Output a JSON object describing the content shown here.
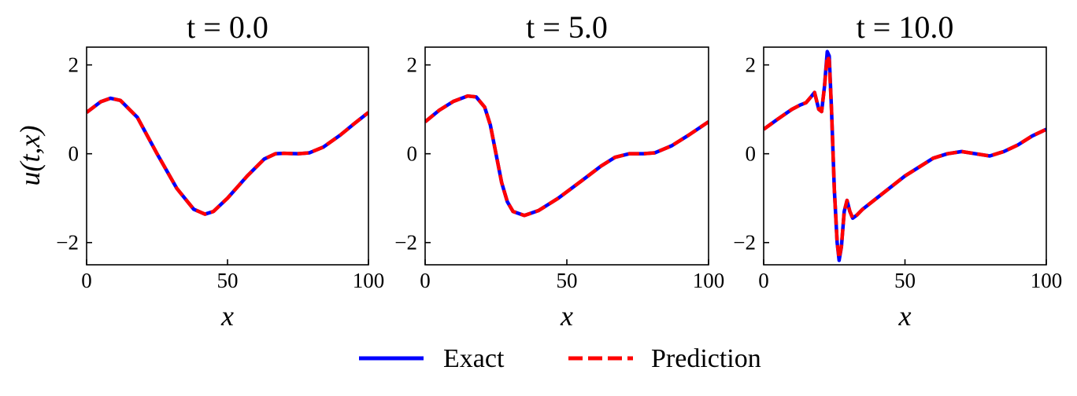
{
  "chart_data": [
    {
      "type": "line",
      "title": "t = 0.0",
      "xlabel": "x",
      "ylabel": "u(t,x)",
      "xlim": [
        0,
        100
      ],
      "ylim": [
        -2.5,
        2.4
      ],
      "xticks": [
        0,
        50,
        100
      ],
      "yticks": [
        -2,
        0,
        2
      ],
      "series": [
        {
          "name": "Exact",
          "color": "#0000ff",
          "style": "solid",
          "x": [
            0,
            5,
            8.5,
            12,
            18,
            25,
            32,
            38,
            42,
            45,
            50,
            57,
            63,
            67,
            70,
            75,
            79,
            84,
            90,
            95,
            100
          ],
          "y": [
            0.93,
            1.17,
            1.25,
            1.2,
            0.82,
            0.0,
            -0.78,
            -1.25,
            -1.36,
            -1.3,
            -1.0,
            -0.5,
            -0.12,
            0.0,
            0.01,
            0.0,
            0.02,
            0.15,
            0.42,
            0.68,
            0.93
          ]
        },
        {
          "name": "Prediction",
          "color": "#ff0000",
          "style": "dashed",
          "x": [
            0,
            5,
            8.5,
            12,
            18,
            25,
            32,
            38,
            42,
            45,
            50,
            57,
            63,
            67,
            70,
            75,
            79,
            84,
            90,
            95,
            100
          ],
          "y": [
            0.93,
            1.17,
            1.25,
            1.2,
            0.82,
            0.0,
            -0.78,
            -1.25,
            -1.36,
            -1.3,
            -1.0,
            -0.5,
            -0.12,
            0.0,
            0.01,
            0.0,
            0.02,
            0.15,
            0.42,
            0.68,
            0.93
          ]
        }
      ]
    },
    {
      "type": "line",
      "title": "t = 5.0",
      "xlabel": "x",
      "ylabel": "",
      "xlim": [
        0,
        100
      ],
      "ylim": [
        -2.5,
        2.4
      ],
      "xticks": [
        0,
        50,
        100
      ],
      "yticks": [
        -2,
        0,
        2
      ],
      "series": [
        {
          "name": "Exact",
          "color": "#0000ff",
          "style": "solid",
          "x": [
            0,
            5,
            10,
            15,
            18,
            21,
            23,
            25,
            27,
            29,
            31,
            35,
            40,
            47,
            55,
            62,
            67,
            72,
            77,
            81,
            87,
            93,
            100
          ],
          "y": [
            0.72,
            0.98,
            1.18,
            1.3,
            1.28,
            1.05,
            0.65,
            0.0,
            -0.65,
            -1.08,
            -1.3,
            -1.39,
            -1.28,
            -1.0,
            -0.62,
            -0.28,
            -0.08,
            0.0,
            0.0,
            0.02,
            0.18,
            0.42,
            0.72
          ]
        },
        {
          "name": "Prediction",
          "color": "#ff0000",
          "style": "dashed",
          "x": [
            0,
            5,
            10,
            15,
            18,
            21,
            23,
            25,
            27,
            29,
            31,
            35,
            40,
            47,
            55,
            62,
            67,
            72,
            77,
            81,
            87,
            93,
            100
          ],
          "y": [
            0.72,
            0.98,
            1.18,
            1.3,
            1.28,
            1.05,
            0.65,
            0.0,
            -0.65,
            -1.08,
            -1.3,
            -1.39,
            -1.28,
            -1.0,
            -0.62,
            -0.28,
            -0.08,
            0.0,
            0.0,
            0.02,
            0.18,
            0.42,
            0.72
          ]
        }
      ]
    },
    {
      "type": "line",
      "title": "t = 10.0",
      "xlabel": "x",
      "ylabel": "",
      "xlim": [
        0,
        100
      ],
      "ylim": [
        -2.5,
        2.4
      ],
      "xticks": [
        0,
        50,
        100
      ],
      "yticks": [
        -2,
        0,
        2
      ],
      "series": [
        {
          "name": "Exact",
          "color": "#0000ff",
          "style": "solid",
          "x": [
            0,
            5,
            10,
            13,
            15,
            17,
            18,
            19.5,
            20.5,
            21.5,
            22.5,
            23.2,
            24,
            25,
            26,
            26.7,
            27.5,
            28.5,
            29.5,
            30.5,
            31.5,
            33,
            35,
            40,
            50,
            60,
            65,
            70,
            75,
            80,
            85,
            90,
            95,
            100
          ],
          "y": [
            0.55,
            0.78,
            1.0,
            1.1,
            1.15,
            1.3,
            1.38,
            1.0,
            0.95,
            1.5,
            2.3,
            2.2,
            1.0,
            -0.8,
            -2.0,
            -2.4,
            -2.1,
            -1.3,
            -1.05,
            -1.3,
            -1.45,
            -1.38,
            -1.25,
            -1.0,
            -0.5,
            -0.1,
            0.0,
            0.05,
            0.0,
            -0.05,
            0.05,
            0.2,
            0.4,
            0.55
          ]
        },
        {
          "name": "Prediction",
          "color": "#ff0000",
          "style": "dashed",
          "x": [
            0,
            5,
            10,
            13,
            15,
            17,
            18,
            19.5,
            20.5,
            21.5,
            22.5,
            23.2,
            24,
            25,
            26,
            26.7,
            27.5,
            28.5,
            29.5,
            30.5,
            31.5,
            33,
            35,
            40,
            50,
            60,
            65,
            70,
            75,
            80,
            85,
            90,
            95,
            100
          ],
          "y": [
            0.55,
            0.78,
            1.0,
            1.1,
            1.15,
            1.3,
            1.38,
            1.0,
            0.95,
            1.5,
            2.2,
            2.1,
            1.0,
            -0.8,
            -2.0,
            -2.35,
            -2.1,
            -1.3,
            -1.05,
            -1.3,
            -1.45,
            -1.38,
            -1.25,
            -1.0,
            -0.5,
            -0.1,
            0.0,
            0.05,
            0.0,
            -0.05,
            0.05,
            0.2,
            0.4,
            0.55
          ]
        }
      ]
    }
  ],
  "legend": {
    "items": [
      {
        "label": "Exact",
        "color": "#0000ff",
        "style": "solid"
      },
      {
        "label": "Prediction",
        "color": "#ff0000",
        "style": "dashed"
      }
    ]
  }
}
